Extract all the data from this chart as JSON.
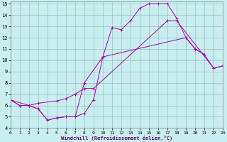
{
  "xlabel": "Windchill (Refroidissement éolien,°C)",
  "bg_color": "#c8eef0",
  "grid_color": "#9dbfbf",
  "line_color": "#aa00aa",
  "xlim": [
    0,
    23
  ],
  "ylim": [
    4,
    15.2
  ],
  "xticks": [
    0,
    1,
    2,
    3,
    4,
    5,
    6,
    7,
    8,
    9,
    10,
    11,
    12,
    13,
    14,
    15,
    16,
    17,
    18,
    19,
    20,
    21,
    22,
    23
  ],
  "yticks": [
    4,
    5,
    6,
    7,
    8,
    9,
    10,
    11,
    12,
    13,
    14,
    15
  ],
  "s1_x": [
    0,
    1,
    2,
    3,
    4,
    5,
    6,
    7,
    8,
    9,
    10,
    11,
    12,
    13,
    14,
    15,
    16,
    17,
    18,
    19,
    20,
    21
  ],
  "s1_y": [
    6.5,
    6.0,
    6.0,
    5.7,
    4.7,
    4.9,
    5.0,
    5.0,
    5.3,
    6.5,
    10.3,
    12.9,
    12.7,
    13.5,
    14.6,
    15.0,
    15.0,
    15.0,
    13.7,
    12.0,
    11.0,
    10.5
  ],
  "s2_x": [
    0,
    2,
    3,
    5,
    6,
    7,
    8,
    9,
    17,
    18,
    22,
    23
  ],
  "s2_y": [
    6.5,
    6.0,
    6.2,
    6.4,
    6.6,
    7.0,
    7.5,
    7.5,
    13.5,
    13.5,
    9.3,
    9.5
  ],
  "s3_x": [
    0,
    1,
    2,
    3,
    4,
    5,
    6,
    7,
    8,
    10,
    19,
    20,
    21,
    22,
    23
  ],
  "s3_y": [
    6.5,
    6.0,
    6.0,
    5.7,
    4.7,
    4.9,
    5.0,
    5.0,
    8.0,
    10.3,
    12.0,
    11.0,
    10.5,
    9.3,
    9.5
  ]
}
